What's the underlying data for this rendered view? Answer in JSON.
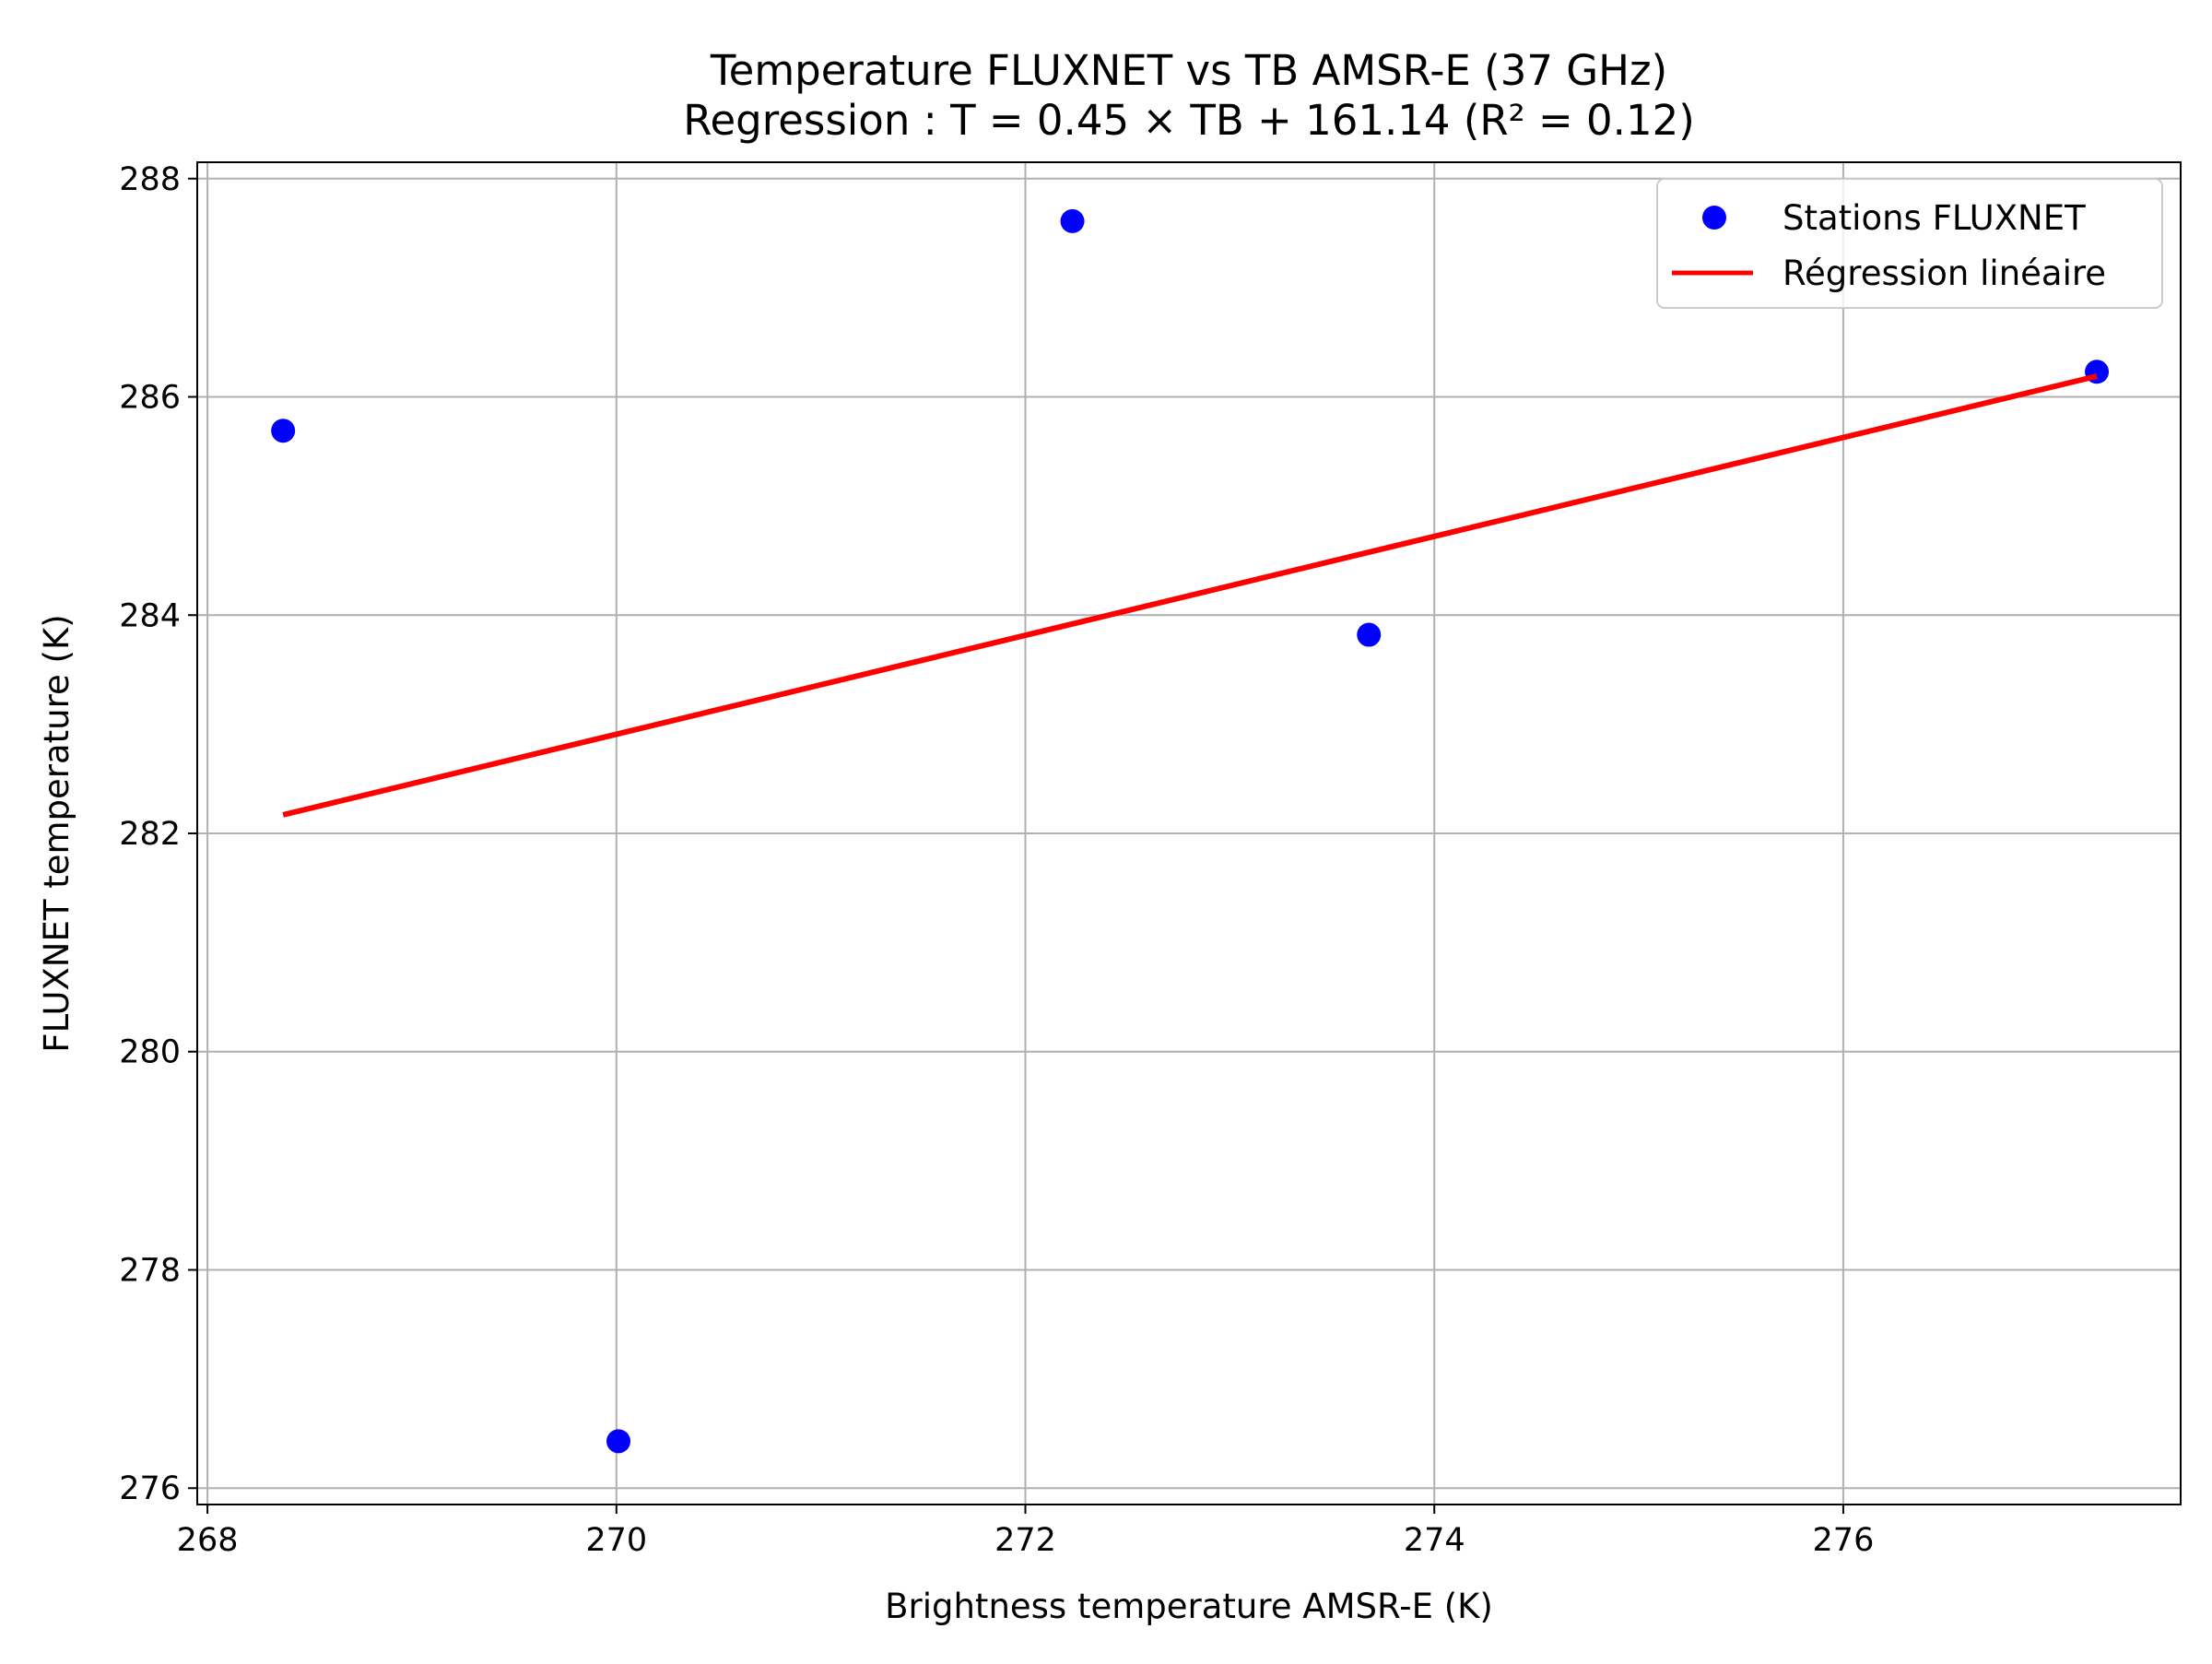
{
  "chart_data": {
    "type": "scatter",
    "title": "Temperature FLUXNET vs TB AMSR-E (37 GHz)",
    "subtitle": "Regression : T = 0.45 × TB + 161.14 (R² = 0.12)",
    "xlabel": "Brightness temperature AMSR-E (K)",
    "ylabel": "FLUXNET temperature (K)",
    "xlim": [
      267.95,
      277.65
    ],
    "ylim": [
      275.85,
      288.15
    ],
    "xticks": [
      268,
      270,
      272,
      274,
      276
    ],
    "yticks": [
      276,
      278,
      280,
      282,
      284,
      286,
      288
    ],
    "xtick_labels": [
      "268",
      "270",
      "272",
      "274",
      "276"
    ],
    "ytick_labels": [
      "276",
      "278",
      "280",
      "282",
      "284",
      "286",
      "288"
    ],
    "grid": true,
    "legend_position": "top-right",
    "series": [
      {
        "name": "Stations FLUXNET",
        "kind": "scatter",
        "color": "#0000ff",
        "points": [
          {
            "x": 268.37,
            "y": 285.69
          },
          {
            "x": 270.01,
            "y": 276.43
          },
          {
            "x": 272.23,
            "y": 287.61
          },
          {
            "x": 273.68,
            "y": 283.82
          },
          {
            "x": 277.24,
            "y": 286.23
          }
        ]
      },
      {
        "name": "Régression linéaire",
        "kind": "line",
        "color": "#ff0000",
        "points": [
          {
            "x": 268.37,
            "y": 282.17
          },
          {
            "x": 277.24,
            "y": 286.19
          }
        ]
      }
    ]
  }
}
